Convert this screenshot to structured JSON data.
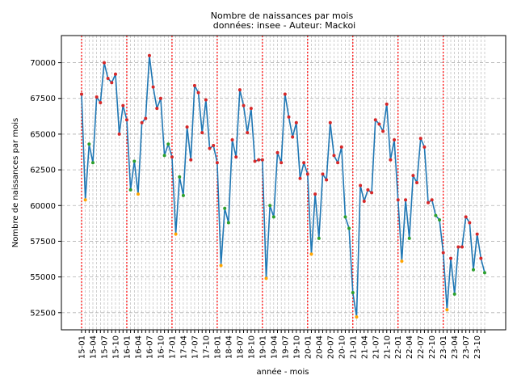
{
  "chart_data": {
    "type": "line",
    "title": "Nombre de naissances par mois",
    "subtitle": "données: insee - Auteur: Mackoi",
    "xlabel": "année - mois",
    "ylabel": "Nombre de naissances par mois",
    "ylim": [
      51300,
      71900
    ],
    "yticks": [
      52500,
      55000,
      57500,
      60000,
      62500,
      65000,
      67500,
      70000
    ],
    "grid": true,
    "x": [
      "15-01",
      "15-02",
      "15-03",
      "15-04",
      "15-05",
      "15-06",
      "15-07",
      "15-08",
      "15-09",
      "15-10",
      "15-11",
      "15-12",
      "16-01",
      "16-02",
      "16-03",
      "16-04",
      "16-05",
      "16-06",
      "16-07",
      "16-08",
      "16-09",
      "16-10",
      "16-11",
      "16-12",
      "17-01",
      "17-02",
      "17-03",
      "17-04",
      "17-05",
      "17-06",
      "17-07",
      "17-08",
      "17-09",
      "17-10",
      "17-11",
      "17-12",
      "18-01",
      "18-02",
      "18-03",
      "18-04",
      "18-05",
      "18-06",
      "18-07",
      "18-08",
      "18-09",
      "18-10",
      "18-11",
      "18-12",
      "19-01",
      "19-02",
      "19-03",
      "19-04",
      "19-05",
      "19-06",
      "19-07",
      "19-08",
      "19-09",
      "19-10",
      "19-11",
      "19-12",
      "20-01",
      "20-02",
      "20-03",
      "20-04",
      "20-05",
      "20-06",
      "20-07",
      "20-08",
      "20-09",
      "20-10",
      "20-11",
      "20-12",
      "21-01",
      "21-02",
      "21-03",
      "21-04",
      "21-05",
      "21-06",
      "21-07",
      "21-08",
      "21-09",
      "21-10",
      "21-11",
      "21-12",
      "22-01",
      "22-02",
      "22-03",
      "22-04",
      "22-05",
      "22-06",
      "22-07",
      "22-08",
      "22-09",
      "22-10",
      "22-11",
      "22-12",
      "23-01",
      "23-02",
      "23-03",
      "23-04",
      "23-05",
      "23-06",
      "23-07",
      "23-08",
      "23-09",
      "23-10",
      "23-11",
      "23-12"
    ],
    "xtick_labels": [
      "15-01",
      "15-04",
      "15-07",
      "15-10",
      "16-01",
      "16-04",
      "16-07",
      "16-10",
      "17-01",
      "17-04",
      "17-07",
      "17-10",
      "18-01",
      "18-04",
      "18-07",
      "18-10",
      "19-01",
      "19-04",
      "19-07",
      "19-10",
      "20-01",
      "20-04",
      "20-07",
      "20-10",
      "21-01",
      "21-04",
      "21-07",
      "21-10",
      "22-01",
      "22-04",
      "22-07",
      "22-10",
      "23-01",
      "23-04",
      "23-07",
      "23-10"
    ],
    "series": [
      {
        "values": [
          67800,
          60400,
          64300,
          63000,
          67600,
          67200,
          70000,
          68900,
          68600,
          69200,
          65000,
          67000,
          66000,
          61100,
          63100,
          60800,
          65800,
          66100,
          70500,
          68300,
          66800,
          67500,
          63500,
          64300,
          63400,
          58000,
          62000,
          60700,
          65500,
          63200,
          68400,
          67900,
          65100,
          67400,
          64000,
          64200,
          63000,
          55800,
          59800,
          58800,
          64600,
          63400,
          68100,
          67000,
          65100,
          66800,
          63100,
          63200,
          63200,
          54900,
          60000,
          59200,
          63700,
          63000,
          67800,
          66200,
          64800,
          65800,
          61900,
          63000,
          62200,
          56600,
          60800,
          57700,
          62200,
          61800,
          65800,
          63500,
          63000,
          64100,
          59200,
          58400,
          53900,
          52200,
          61400,
          60300,
          61100,
          60900,
          66000,
          65700,
          65200,
          67100,
          63200,
          64600,
          60400,
          56100,
          60400,
          57700,
          62100,
          61600,
          64700,
          64100,
          60200,
          60400,
          59300,
          59000,
          56700,
          52700,
          56300,
          53800,
          57100,
          57100,
          59200,
          58800,
          55500,
          58000,
          56300,
          55300
        ]
      }
    ],
    "colors": {
      "line": "#1f77b4",
      "year_marker": "#ff0000",
      "grid": "#b0b0b0",
      "point_high": "#d62728",
      "point_mid": "#2ca02c",
      "point_low": "#ffa500"
    }
  }
}
